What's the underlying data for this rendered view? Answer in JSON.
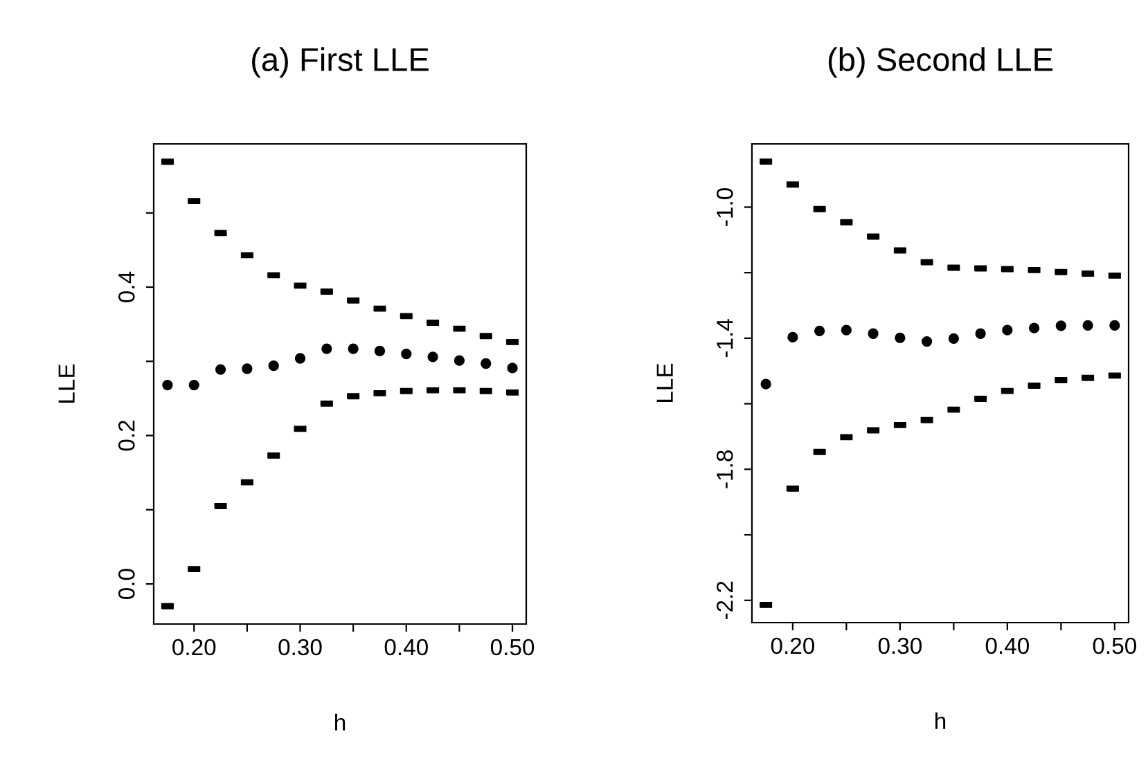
{
  "chart_data": [
    {
      "type": "scatter",
      "title": "(a) First LLE",
      "xlabel": "h",
      "ylabel": "LLE",
      "grid": false,
      "legend": false,
      "x": [
        0.175,
        0.2,
        0.225,
        0.25,
        0.275,
        0.3,
        0.325,
        0.35,
        0.375,
        0.4,
        0.425,
        0.45,
        0.475,
        0.5
      ],
      "xlim": [
        0.162,
        0.513
      ],
      "ylim": [
        -0.054,
        0.593
      ],
      "xticks": [
        {
          "value": 0.2,
          "label": "0.20"
        },
        {
          "value": 0.25,
          "label": null
        },
        {
          "value": 0.3,
          "label": "0.30"
        },
        {
          "value": 0.35,
          "label": null
        },
        {
          "value": 0.4,
          "label": "0.40"
        },
        {
          "value": 0.45,
          "label": null
        },
        {
          "value": 0.5,
          "label": "0.50"
        }
      ],
      "yticks": [
        {
          "value": 0.0,
          "label": "0.0"
        },
        {
          "value": 0.1,
          "label": null
        },
        {
          "value": 0.2,
          "label": "0.2"
        },
        {
          "value": 0.3,
          "label": null
        },
        {
          "value": 0.4,
          "label": "0.4"
        },
        {
          "value": 0.5,
          "label": null
        }
      ],
      "series": [
        {
          "color": "#000000",
          "marker": "circle",
          "values": [
            0.268,
            0.268,
            0.289,
            0.29,
            0.294,
            0.304,
            0.317,
            0.317,
            0.314,
            0.31,
            0.306,
            0.301,
            0.297,
            0.291
          ]
        },
        {
          "color": "#000000",
          "values": [
            0.569,
            0.516,
            0.473,
            0.443,
            0.416,
            0.402,
            0.394,
            0.382,
            0.371,
            0.361,
            0.352,
            0.344,
            0.334,
            0.326
          ]
        },
        {
          "color": "#000000",
          "values": [
            -0.03,
            0.02,
            0.105,
            0.137,
            0.173,
            0.209,
            0.243,
            0.253,
            0.257,
            0.26,
            0.261,
            0.261,
            0.26,
            0.258
          ]
        }
      ]
    },
    {
      "type": "scatter",
      "title": "(b) Second LLE",
      "xlabel": "h",
      "ylabel": "LLE",
      "grid": false,
      "legend": false,
      "x": [
        0.175,
        0.2,
        0.225,
        0.25,
        0.275,
        0.3,
        0.325,
        0.35,
        0.375,
        0.4,
        0.425,
        0.45,
        0.475,
        0.5
      ],
      "xlim": [
        0.162,
        0.513
      ],
      "ylim": [
        -2.268,
        -0.807
      ],
      "xticks": [
        {
          "value": 0.2,
          "label": "0.20"
        },
        {
          "value": 0.25,
          "label": null
        },
        {
          "value": 0.3,
          "label": "0.30"
        },
        {
          "value": 0.35,
          "label": null
        },
        {
          "value": 0.4,
          "label": "0.40"
        },
        {
          "value": 0.45,
          "label": null
        },
        {
          "value": 0.5,
          "label": "0.50"
        }
      ],
      "yticks": [
        {
          "value": -2.2,
          "label": "-2.2"
        },
        {
          "value": -2.0,
          "label": null
        },
        {
          "value": -1.8,
          "label": "-1.8"
        },
        {
          "value": -1.6,
          "label": null
        },
        {
          "value": -1.4,
          "label": "-1.4"
        },
        {
          "value": -1.2,
          "label": null
        },
        {
          "value": -1.0,
          "label": "-1.0"
        }
      ],
      "series": [
        {
          "color": "#000000",
          "marker": "circle",
          "values": [
            -1.54,
            -1.397,
            -1.378,
            -1.375,
            -1.386,
            -1.399,
            -1.41,
            -1.401,
            -1.386,
            -1.375,
            -1.369,
            -1.362,
            -1.361,
            -1.361
          ]
        },
        {
          "color": "#000000",
          "values": [
            -0.861,
            -0.931,
            -1.006,
            -1.046,
            -1.09,
            -1.132,
            -1.168,
            -1.185,
            -1.187,
            -1.189,
            -1.192,
            -1.198,
            -1.203,
            -1.209
          ]
        },
        {
          "color": "#000000",
          "values": [
            -2.214,
            -1.859,
            -1.747,
            -1.702,
            -1.681,
            -1.665,
            -1.65,
            -1.618,
            -1.585,
            -1.561,
            -1.545,
            -1.528,
            -1.521,
            -1.514
          ]
        }
      ]
    }
  ]
}
